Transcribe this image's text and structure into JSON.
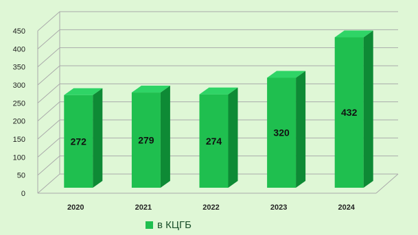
{
  "chart_data": {
    "type": "bar",
    "categories": [
      "2020",
      "2021",
      "2022",
      "2023",
      "2024"
    ],
    "series": [
      {
        "name": "в КЦГБ",
        "values": [
          272,
          279,
          274,
          320,
          432
        ]
      }
    ],
    "data_labels": [
      "272",
      "279",
      "274",
      "320",
      "432"
    ],
    "y_ticks": [
      "0",
      "50",
      "100",
      "150",
      "200",
      "250",
      "300",
      "350",
      "400",
      "450"
    ],
    "ylim": [
      0,
      450
    ],
    "grid": true,
    "legend_position": "bottom",
    "colors": {
      "bar_front": "#1fbf4f",
      "bar_side": "#0e8a35",
      "bar_top": "#2fd466",
      "grid": "#aaa",
      "background": "#dff7d6"
    }
  }
}
